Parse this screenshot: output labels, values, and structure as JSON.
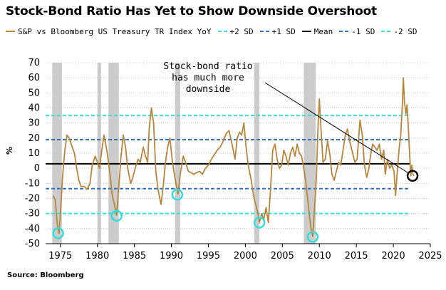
{
  "title": "Stock-Bond Ratio Has Yet to Show Downside Overshoot",
  "source": "Source: Bloomberg",
  "ylabel": "%",
  "annotation": [
    "Stock-bond ratio",
    "has much more",
    "downside"
  ],
  "colors": {
    "series": "#b8863b",
    "plus2sd": "#33e0e0",
    "plus1sd": "#2f6fbf",
    "mean": "#000000",
    "minus1sd": "#2f6fbf",
    "minus2sd": "#33e0e0",
    "recession": "#cccccc",
    "circle": "#33dddd"
  },
  "legend": [
    {
      "label": "S&P vs Bloomberg US Treasury TR Index YoY",
      "key": "series",
      "style": "solid"
    },
    {
      "label": "+2 SD",
      "key": "plus2sd",
      "style": "dashed"
    },
    {
      "label": "+1 SD",
      "key": "plus1sd",
      "style": "dashed"
    },
    {
      "label": "Mean",
      "key": "mean",
      "style": "solid"
    },
    {
      "label": "-1 SD",
      "key": "minus1sd",
      "style": "dashed"
    },
    {
      "label": "-2 SD",
      "key": "minus2sd",
      "style": "dashed"
    }
  ],
  "chart_data": {
    "type": "line",
    "title": "Stock-Bond Ratio Has Yet to Show Downside Overshoot",
    "xlabel": "",
    "ylabel": "%",
    "xlim": [
      1973,
      2025
    ],
    "ylim": [
      -50,
      70
    ],
    "xticks": [
      "1975",
      "1980",
      "1985",
      "1990",
      "1995",
      "2000",
      "2005",
      "2010",
      "2015",
      "2020",
      "2025"
    ],
    "yticks": [
      "70",
      "60",
      "50",
      "40",
      "30",
      "20",
      "10",
      "0",
      "-10",
      "-20",
      "-30",
      "-40",
      "-50"
    ],
    "grid": "horizontal dotted",
    "legend_position": "top",
    "reference_lines": [
      {
        "name": "+2 SD",
        "value": 35
      },
      {
        "name": "+1 SD",
        "value": 19
      },
      {
        "name": "Mean",
        "value": 3
      },
      {
        "name": "-1 SD",
        "value": -13.5
      },
      {
        "name": "-2 SD",
        "value": -30
      }
    ],
    "recession_bands": [
      [
        1973.9,
        1975.2
      ],
      [
        1980.0,
        1980.5
      ],
      [
        1981.5,
        1982.9
      ],
      [
        1990.5,
        1991.2
      ],
      [
        2001.2,
        2001.9
      ],
      [
        2007.9,
        2009.5
      ]
    ],
    "highlight_circles": [
      {
        "x": 1974.7,
        "y": -43
      },
      {
        "x": 1982.6,
        "y": -31.5
      },
      {
        "x": 1990.8,
        "y": -17.5
      },
      {
        "x": 2001.9,
        "y": -36
      },
      {
        "x": 2009.1,
        "y": -45.5
      }
    ],
    "current_circle": {
      "x": 2022.6,
      "y": -5
    },
    "series": [
      {
        "name": "S&P vs Bloomberg US Treasury TR Index YoY",
        "points": [
          [
            1974.0,
            -18
          ],
          [
            1974.3,
            -21
          ],
          [
            1974.6,
            -38
          ],
          [
            1974.8,
            -43
          ],
          [
            1975.0,
            -30
          ],
          [
            1975.3,
            -5
          ],
          [
            1975.6,
            12
          ],
          [
            1975.9,
            22
          ],
          [
            1976.2,
            20
          ],
          [
            1976.6,
            14
          ],
          [
            1976.9,
            10
          ],
          [
            1977.2,
            0
          ],
          [
            1977.5,
            -8
          ],
          [
            1977.8,
            -12
          ],
          [
            1978.2,
            -12
          ],
          [
            1978.6,
            -14
          ],
          [
            1979.0,
            -10
          ],
          [
            1979.3,
            2
          ],
          [
            1979.7,
            8
          ],
          [
            1980.0,
            4
          ],
          [
            1980.3,
            0
          ],
          [
            1980.6,
            12
          ],
          [
            1980.9,
            22
          ],
          [
            1981.2,
            14
          ],
          [
            1981.5,
            4
          ],
          [
            1981.8,
            -8
          ],
          [
            1982.0,
            -18
          ],
          [
            1982.3,
            -24
          ],
          [
            1982.6,
            -31
          ],
          [
            1982.9,
            -12
          ],
          [
            1983.2,
            8
          ],
          [
            1983.5,
            22
          ],
          [
            1983.8,
            14
          ],
          [
            1984.1,
            0
          ],
          [
            1984.5,
            -10
          ],
          [
            1984.8,
            -6
          ],
          [
            1985.1,
            0
          ],
          [
            1985.5,
            6
          ],
          [
            1985.8,
            4
          ],
          [
            1986.2,
            14
          ],
          [
            1986.5,
            8
          ],
          [
            1986.8,
            4
          ],
          [
            1987.0,
            26
          ],
          [
            1987.3,
            40
          ],
          [
            1987.6,
            30
          ],
          [
            1987.9,
            -2
          ],
          [
            1988.2,
            -14
          ],
          [
            1988.6,
            -24
          ],
          [
            1988.9,
            -12
          ],
          [
            1989.2,
            4
          ],
          [
            1989.5,
            14
          ],
          [
            1989.8,
            20
          ],
          [
            1990.1,
            6
          ],
          [
            1990.4,
            -4
          ],
          [
            1990.7,
            -12
          ],
          [
            1990.9,
            -17
          ],
          [
            1991.2,
            -4
          ],
          [
            1991.6,
            8
          ],
          [
            1991.9,
            4
          ],
          [
            1992.3,
            -2
          ],
          [
            1992.7,
            -3
          ],
          [
            1993.0,
            -4
          ],
          [
            1993.4,
            -3
          ],
          [
            1993.8,
            -2
          ],
          [
            1994.2,
            -4
          ],
          [
            1994.6,
            0
          ],
          [
            1995.0,
            2
          ],
          [
            1995.4,
            6
          ],
          [
            1995.8,
            9
          ],
          [
            1996.2,
            12
          ],
          [
            1996.6,
            14
          ],
          [
            1997.0,
            18
          ],
          [
            1997.4,
            23
          ],
          [
            1997.8,
            25
          ],
          [
            1998.2,
            16
          ],
          [
            1998.6,
            6
          ],
          [
            1998.9,
            20
          ],
          [
            1999.2,
            24
          ],
          [
            1999.5,
            22
          ],
          [
            1999.8,
            30
          ],
          [
            2000.1,
            14
          ],
          [
            2000.4,
            2
          ],
          [
            2000.8,
            -8
          ],
          [
            2001.1,
            -18
          ],
          [
            2001.4,
            -24
          ],
          [
            2001.7,
            -30
          ],
          [
            2001.9,
            -36
          ],
          [
            2002.2,
            -30
          ],
          [
            2002.5,
            -34
          ],
          [
            2002.8,
            -26
          ],
          [
            2003.1,
            -36
          ],
          [
            2003.4,
            -14
          ],
          [
            2003.7,
            12
          ],
          [
            2004.0,
            16
          ],
          [
            2004.3,
            6
          ],
          [
            2004.6,
            0
          ],
          [
            2004.9,
            2
          ],
          [
            2005.2,
            12
          ],
          [
            2005.5,
            8
          ],
          [
            2005.8,
            2
          ],
          [
            2006.1,
            10
          ],
          [
            2006.4,
            14
          ],
          [
            2006.7,
            8
          ],
          [
            2007.0,
            16
          ],
          [
            2007.3,
            10
          ],
          [
            2007.6,
            8
          ],
          [
            2007.9,
            0
          ],
          [
            2008.2,
            -10
          ],
          [
            2008.5,
            -24
          ],
          [
            2008.8,
            -38
          ],
          [
            2009.1,
            -45
          ],
          [
            2009.3,
            -30
          ],
          [
            2009.6,
            -6
          ],
          [
            2009.8,
            26
          ],
          [
            2010.0,
            46
          ],
          [
            2010.2,
            28
          ],
          [
            2010.5,
            4
          ],
          [
            2010.8,
            6
          ],
          [
            2011.1,
            18
          ],
          [
            2011.4,
            10
          ],
          [
            2011.7,
            -4
          ],
          [
            2012.0,
            -8
          ],
          [
            2012.3,
            -2
          ],
          [
            2012.6,
            4
          ],
          [
            2012.9,
            2
          ],
          [
            2013.2,
            12
          ],
          [
            2013.5,
            22
          ],
          [
            2013.8,
            26
          ],
          [
            2014.1,
            18
          ],
          [
            2014.5,
            10
          ],
          [
            2014.8,
            4
          ],
          [
            2015.1,
            6
          ],
          [
            2015.5,
            32
          ],
          [
            2015.8,
            22
          ],
          [
            2016.1,
            2
          ],
          [
            2016.4,
            -6
          ],
          [
            2016.7,
            0
          ],
          [
            2016.9,
            8
          ],
          [
            2017.2,
            16
          ],
          [
            2017.5,
            14
          ],
          [
            2017.8,
            12
          ],
          [
            2018.1,
            16
          ],
          [
            2018.4,
            6
          ],
          [
            2018.7,
            12
          ],
          [
            2018.9,
            -4
          ],
          [
            2019.2,
            6
          ],
          [
            2019.5,
            0
          ],
          [
            2019.8,
            2
          ],
          [
            2020.1,
            -2
          ],
          [
            2020.3,
            -18
          ],
          [
            2020.5,
            -4
          ],
          [
            2020.8,
            14
          ],
          [
            2021.0,
            22
          ],
          [
            2021.2,
            40
          ],
          [
            2021.35,
            60
          ],
          [
            2021.5,
            44
          ],
          [
            2021.7,
            36
          ],
          [
            2021.85,
            42
          ],
          [
            2022.0,
            30
          ],
          [
            2022.2,
            10
          ],
          [
            2022.35,
            -5
          ],
          [
            2022.5,
            2
          ],
          [
            2022.65,
            -4
          ],
          [
            2022.8,
            -5
          ]
        ]
      }
    ]
  }
}
